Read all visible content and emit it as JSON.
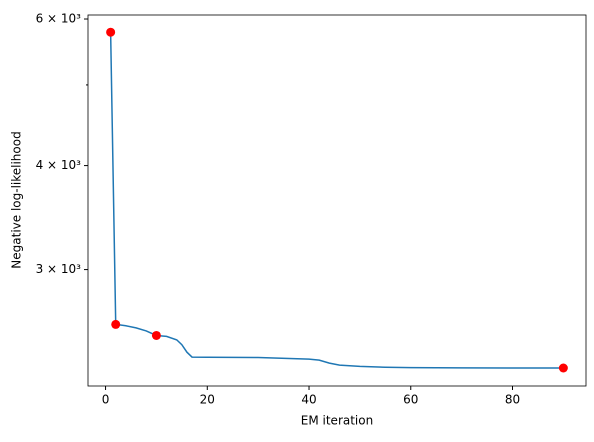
{
  "chart_data": {
    "type": "line",
    "x_label": "EM iteration",
    "y_label": "Negative log-likelihood",
    "log_y": true,
    "series": [
      {
        "color": "#1f77b4",
        "x": [
          1,
          2,
          4,
          6,
          8,
          10,
          12,
          14,
          15,
          16,
          17,
          20,
          30,
          40,
          42,
          44,
          46,
          50,
          55,
          60,
          70,
          80,
          90
        ],
        "values": [
          5785,
          2578,
          2568,
          2553,
          2532,
          2500,
          2494,
          2470,
          2437,
          2387,
          2355,
          2354,
          2352,
          2342,
          2335,
          2316,
          2303,
          2295,
          2290,
          2287,
          2286,
          2285,
          2285
        ]
      },
      {
        "color": "#ff0000",
        "marker_only": true,
        "x": [
          1,
          2,
          10,
          90
        ],
        "values": [
          5785,
          2578,
          2500,
          2285
        ]
      }
    ],
    "xlim": [
      -3.45,
      94.45
    ],
    "xticks": [
      0,
      20,
      40,
      60,
      80
    ],
    "ylim": [
      2174,
      6067
    ],
    "yticks": [
      {
        "value": 3000,
        "label": "3 × 10³"
      },
      {
        "value": 4000,
        "label": "4 × 10³"
      },
      {
        "value": 6000,
        "label": "6 × 10³"
      }
    ],
    "minor_yticks": [
      5000
    ]
  }
}
